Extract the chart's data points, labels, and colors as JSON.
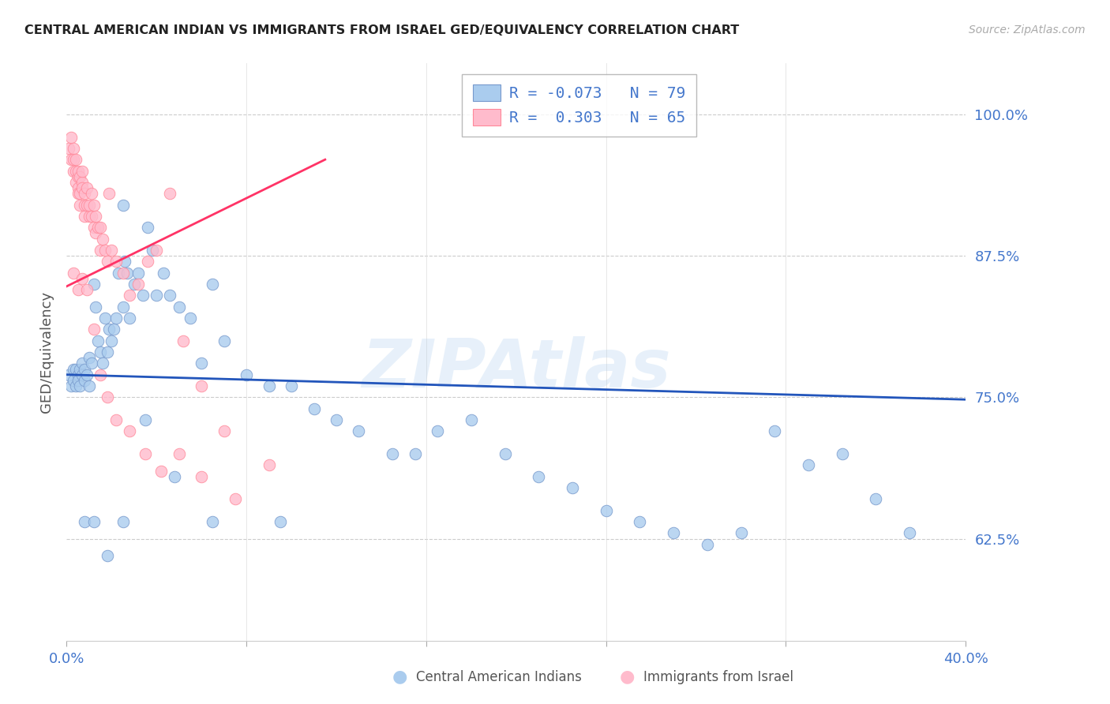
{
  "title": "CENTRAL AMERICAN INDIAN VS IMMIGRANTS FROM ISRAEL GED/EQUIVALENCY CORRELATION CHART",
  "source": "Source: ZipAtlas.com",
  "ylabel": "GED/Equivalency",
  "xmin": 0.0,
  "xmax": 0.4,
  "ymin": 0.535,
  "ymax": 1.045,
  "yticks": [
    0.625,
    0.75,
    0.875,
    1.0
  ],
  "ytick_labels": [
    "62.5%",
    "75.0%",
    "87.5%",
    "100.0%"
  ],
  "legend1_label": "R = -0.073   N = 79",
  "legend2_label": "R =  0.303   N = 65",
  "watermark": "ZIPAtlas",
  "blue_scatter_x": [
    0.001,
    0.002,
    0.003,
    0.003,
    0.004,
    0.004,
    0.005,
    0.005,
    0.006,
    0.006,
    0.007,
    0.007,
    0.008,
    0.008,
    0.009,
    0.01,
    0.01,
    0.011,
    0.012,
    0.013,
    0.014,
    0.015,
    0.016,
    0.017,
    0.018,
    0.019,
    0.02,
    0.021,
    0.022,
    0.023,
    0.025,
    0.026,
    0.027,
    0.028,
    0.03,
    0.032,
    0.034,
    0.036,
    0.038,
    0.04,
    0.043,
    0.046,
    0.05,
    0.055,
    0.06,
    0.065,
    0.07,
    0.08,
    0.09,
    0.1,
    0.11,
    0.12,
    0.13,
    0.145,
    0.155,
    0.165,
    0.18,
    0.195,
    0.21,
    0.225,
    0.24,
    0.255,
    0.27,
    0.285,
    0.3,
    0.315,
    0.33,
    0.345,
    0.36,
    0.375,
    0.008,
    0.012,
    0.018,
    0.025,
    0.035,
    0.048,
    0.065,
    0.095,
    0.025
  ],
  "blue_scatter_y": [
    0.77,
    0.76,
    0.775,
    0.765,
    0.76,
    0.775,
    0.77,
    0.765,
    0.76,
    0.775,
    0.78,
    0.77,
    0.765,
    0.775,
    0.77,
    0.785,
    0.76,
    0.78,
    0.85,
    0.83,
    0.8,
    0.79,
    0.78,
    0.82,
    0.79,
    0.81,
    0.8,
    0.81,
    0.82,
    0.86,
    0.83,
    0.87,
    0.86,
    0.82,
    0.85,
    0.86,
    0.84,
    0.9,
    0.88,
    0.84,
    0.86,
    0.84,
    0.83,
    0.82,
    0.78,
    0.85,
    0.8,
    0.77,
    0.76,
    0.76,
    0.74,
    0.73,
    0.72,
    0.7,
    0.7,
    0.72,
    0.73,
    0.7,
    0.68,
    0.67,
    0.65,
    0.64,
    0.63,
    0.62,
    0.63,
    0.72,
    0.69,
    0.7,
    0.66,
    0.63,
    0.64,
    0.64,
    0.61,
    0.64,
    0.73,
    0.68,
    0.64,
    0.64,
    0.92
  ],
  "pink_scatter_x": [
    0.001,
    0.002,
    0.002,
    0.003,
    0.003,
    0.003,
    0.004,
    0.004,
    0.004,
    0.005,
    0.005,
    0.005,
    0.005,
    0.006,
    0.006,
    0.006,
    0.007,
    0.007,
    0.007,
    0.008,
    0.008,
    0.008,
    0.009,
    0.009,
    0.01,
    0.01,
    0.011,
    0.011,
    0.012,
    0.012,
    0.013,
    0.013,
    0.014,
    0.015,
    0.015,
    0.016,
    0.017,
    0.018,
    0.019,
    0.02,
    0.022,
    0.025,
    0.028,
    0.032,
    0.036,
    0.04,
    0.046,
    0.052,
    0.06,
    0.07,
    0.003,
    0.005,
    0.007,
    0.009,
    0.012,
    0.015,
    0.018,
    0.022,
    0.028,
    0.035,
    0.042,
    0.05,
    0.06,
    0.075,
    0.09
  ],
  "pink_scatter_y": [
    0.97,
    0.98,
    0.96,
    0.97,
    0.96,
    0.95,
    0.96,
    0.95,
    0.94,
    0.945,
    0.935,
    0.95,
    0.93,
    0.92,
    0.93,
    0.945,
    0.94,
    0.95,
    0.935,
    0.92,
    0.93,
    0.91,
    0.935,
    0.92,
    0.91,
    0.92,
    0.93,
    0.91,
    0.92,
    0.9,
    0.91,
    0.895,
    0.9,
    0.88,
    0.9,
    0.89,
    0.88,
    0.87,
    0.93,
    0.88,
    0.87,
    0.86,
    0.84,
    0.85,
    0.87,
    0.88,
    0.93,
    0.8,
    0.76,
    0.72,
    0.86,
    0.845,
    0.855,
    0.845,
    0.81,
    0.77,
    0.75,
    0.73,
    0.72,
    0.7,
    0.685,
    0.7,
    0.68,
    0.66,
    0.69
  ],
  "blue_line_x": [
    0.0,
    0.4
  ],
  "blue_line_y": [
    0.77,
    0.748
  ],
  "pink_line_x": [
    0.0,
    0.115
  ],
  "pink_line_y": [
    0.848,
    0.96
  ]
}
